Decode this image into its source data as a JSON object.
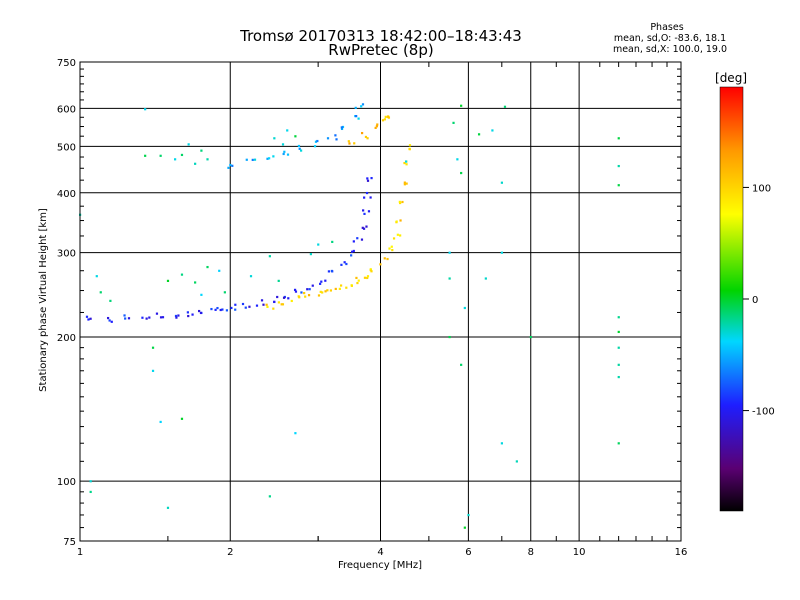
{
  "title_line1": "Tromsø 20170313 18:42:00–18:43:43",
  "title_line2": "RwPretec (8p)",
  "phases": {
    "heading": "Phases",
    "line_o": "mean, sd,O: -83.6, 18.1",
    "line_x": "mean, sd,X: 100.0, 19.0"
  },
  "colorbar": {
    "label": "deg",
    "ticks": [
      {
        "value": 100,
        "label": "100"
      },
      {
        "value": 0,
        "label": "0"
      },
      {
        "value": -100,
        "label": "-100"
      }
    ],
    "range": [
      -190,
      190
    ]
  },
  "chart_data": {
    "type": "scatter",
    "xlabel": "Frequency [MHz]",
    "ylabel": "Stationary phase Virtual Height [km]",
    "x_scale": "log",
    "y_scale": "log",
    "xlim": [
      1,
      16
    ],
    "ylim": [
      75,
      750
    ],
    "x_ticks": [
      {
        "value": 1,
        "label": "1"
      },
      {
        "value": 2,
        "label": "2"
      },
      {
        "value": 4,
        "label": "4"
      },
      {
        "value": 6,
        "label": "6"
      },
      {
        "value": 8,
        "label": "8"
      },
      {
        "value": 10,
        "label": "10"
      },
      {
        "value": 16,
        "label": "16"
      }
    ],
    "y_ticks": [
      {
        "value": 75,
        "label": "75"
      },
      {
        "value": 100,
        "label": "100"
      },
      {
        "value": 200,
        "label": "200"
      },
      {
        "value": 300,
        "label": "300"
      },
      {
        "value": 400,
        "label": "400"
      },
      {
        "value": 500,
        "label": "500"
      },
      {
        "value": 600,
        "label": "600"
      },
      {
        "value": 750,
        "label": "750"
      }
    ],
    "grid": true,
    "series": [
      {
        "description": "F-layer O-mode trace",
        "points": [
          [
            1.05,
            218
          ],
          [
            1.15,
            218
          ],
          [
            1.25,
            219
          ],
          [
            1.35,
            220
          ],
          [
            1.45,
            221
          ],
          [
            1.55,
            222
          ],
          [
            1.65,
            224
          ],
          [
            1.75,
            225
          ],
          [
            1.85,
            227
          ],
          [
            1.95,
            229
          ],
          [
            2.05,
            231
          ],
          [
            2.15,
            233
          ],
          [
            2.3,
            236
          ],
          [
            2.45,
            240
          ],
          [
            2.6,
            244
          ],
          [
            2.75,
            249
          ],
          [
            2.9,
            255
          ],
          [
            3.05,
            262
          ],
          [
            3.2,
            271
          ],
          [
            3.35,
            283
          ],
          [
            3.5,
            300
          ],
          [
            3.6,
            318
          ],
          [
            3.68,
            340
          ],
          [
            3.73,
            365
          ],
          [
            3.77,
            395
          ],
          [
            3.8,
            430
          ]
        ],
        "phase": -95
      },
      {
        "description": "F-layer X-mode trace",
        "points": [
          [
            2.4,
            232
          ],
          [
            2.55,
            236
          ],
          [
            2.7,
            240
          ],
          [
            2.85,
            244
          ],
          [
            3.0,
            247
          ],
          [
            3.15,
            250
          ],
          [
            3.3,
            253
          ],
          [
            3.45,
            257
          ],
          [
            3.6,
            262
          ],
          [
            3.75,
            268
          ],
          [
            3.9,
            276
          ],
          [
            4.05,
            288
          ],
          [
            4.2,
            305
          ],
          [
            4.3,
            325
          ],
          [
            4.38,
            350
          ],
          [
            4.44,
            385
          ],
          [
            4.48,
            420
          ],
          [
            4.51,
            460
          ],
          [
            4.53,
            500
          ]
        ],
        "phase": 100
      },
      {
        "description": "second-hop O-mode trace",
        "points": [
          [
            2.0,
            458
          ],
          [
            2.2,
            465
          ],
          [
            2.4,
            474
          ],
          [
            2.6,
            483
          ],
          [
            2.8,
            494
          ],
          [
            3.0,
            508
          ],
          [
            3.2,
            525
          ],
          [
            3.4,
            548
          ],
          [
            3.55,
            575
          ],
          [
            3.62,
            605
          ]
        ],
        "phase": -50
      },
      {
        "description": "second-hop X-mode trace",
        "points": [
          [
            3.5,
            510
          ],
          [
            3.7,
            528
          ],
          [
            3.9,
            550
          ],
          [
            4.05,
            568
          ],
          [
            4.2,
            580
          ]
        ],
        "phase": 110
      },
      {
        "description": "scattered echoes",
        "points": [
          [
            1.6,
            480
          ],
          [
            1.65,
            505
          ],
          [
            1.7,
            460
          ],
          [
            1.75,
            490
          ],
          [
            1.8,
            470
          ],
          [
            1.55,
            470
          ],
          [
            2.45,
            520
          ],
          [
            2.6,
            540
          ],
          [
            2.55,
            505
          ],
          [
            2.7,
            525
          ],
          [
            1.6,
            270
          ],
          [
            1.7,
            260
          ],
          [
            1.8,
            280
          ],
          [
            1.9,
            275
          ],
          [
            1.5,
            262
          ],
          [
            1.75,
            245
          ],
          [
            1.95,
            248
          ],
          [
            2.2,
            268
          ],
          [
            1.35,
            598
          ],
          [
            1.35,
            478
          ],
          [
            1.45,
            478
          ],
          [
            1.08,
            268
          ],
          [
            1.1,
            248
          ],
          [
            1.15,
            238
          ],
          [
            2.4,
            295
          ],
          [
            2.5,
            262
          ],
          [
            2.9,
            298
          ],
          [
            3.0,
            312
          ],
          [
            3.2,
            316
          ],
          [
            5.8,
            608
          ],
          [
            5.6,
            560
          ],
          [
            5.7,
            470
          ],
          [
            5.8,
            440
          ],
          [
            5.5,
            300
          ],
          [
            5.5,
            265
          ],
          [
            5.9,
            230
          ],
          [
            5.5,
            200
          ],
          [
            5.8,
            175
          ],
          [
            6.0,
            85
          ],
          [
            5.9,
            80
          ],
          [
            7.0,
            120
          ],
          [
            7.5,
            110
          ],
          [
            6.3,
            530
          ],
          [
            6.7,
            540
          ],
          [
            7.1,
            605
          ],
          [
            8.0,
            200
          ],
          [
            12.0,
            520
          ],
          [
            12.0,
            455
          ],
          [
            12.0,
            415
          ],
          [
            12.0,
            220
          ],
          [
            12.0,
            205
          ],
          [
            12.0,
            190
          ],
          [
            12.0,
            175
          ],
          [
            12.0,
            165
          ],
          [
            12.0,
            120
          ],
          [
            1.4,
            190
          ],
          [
            1.4,
            170
          ],
          [
            1.45,
            133
          ],
          [
            1.6,
            135
          ],
          [
            1.5,
            88
          ],
          [
            2.4,
            93
          ],
          [
            2.7,
            126
          ],
          [
            1.05,
            100
          ],
          [
            1.05,
            95
          ],
          [
            1.0,
            360
          ],
          [
            4.5,
            465
          ],
          [
            7.0,
            420
          ],
          [
            7.0,
            300
          ],
          [
            6.5,
            265
          ]
        ],
        "phase": -20
      }
    ]
  }
}
